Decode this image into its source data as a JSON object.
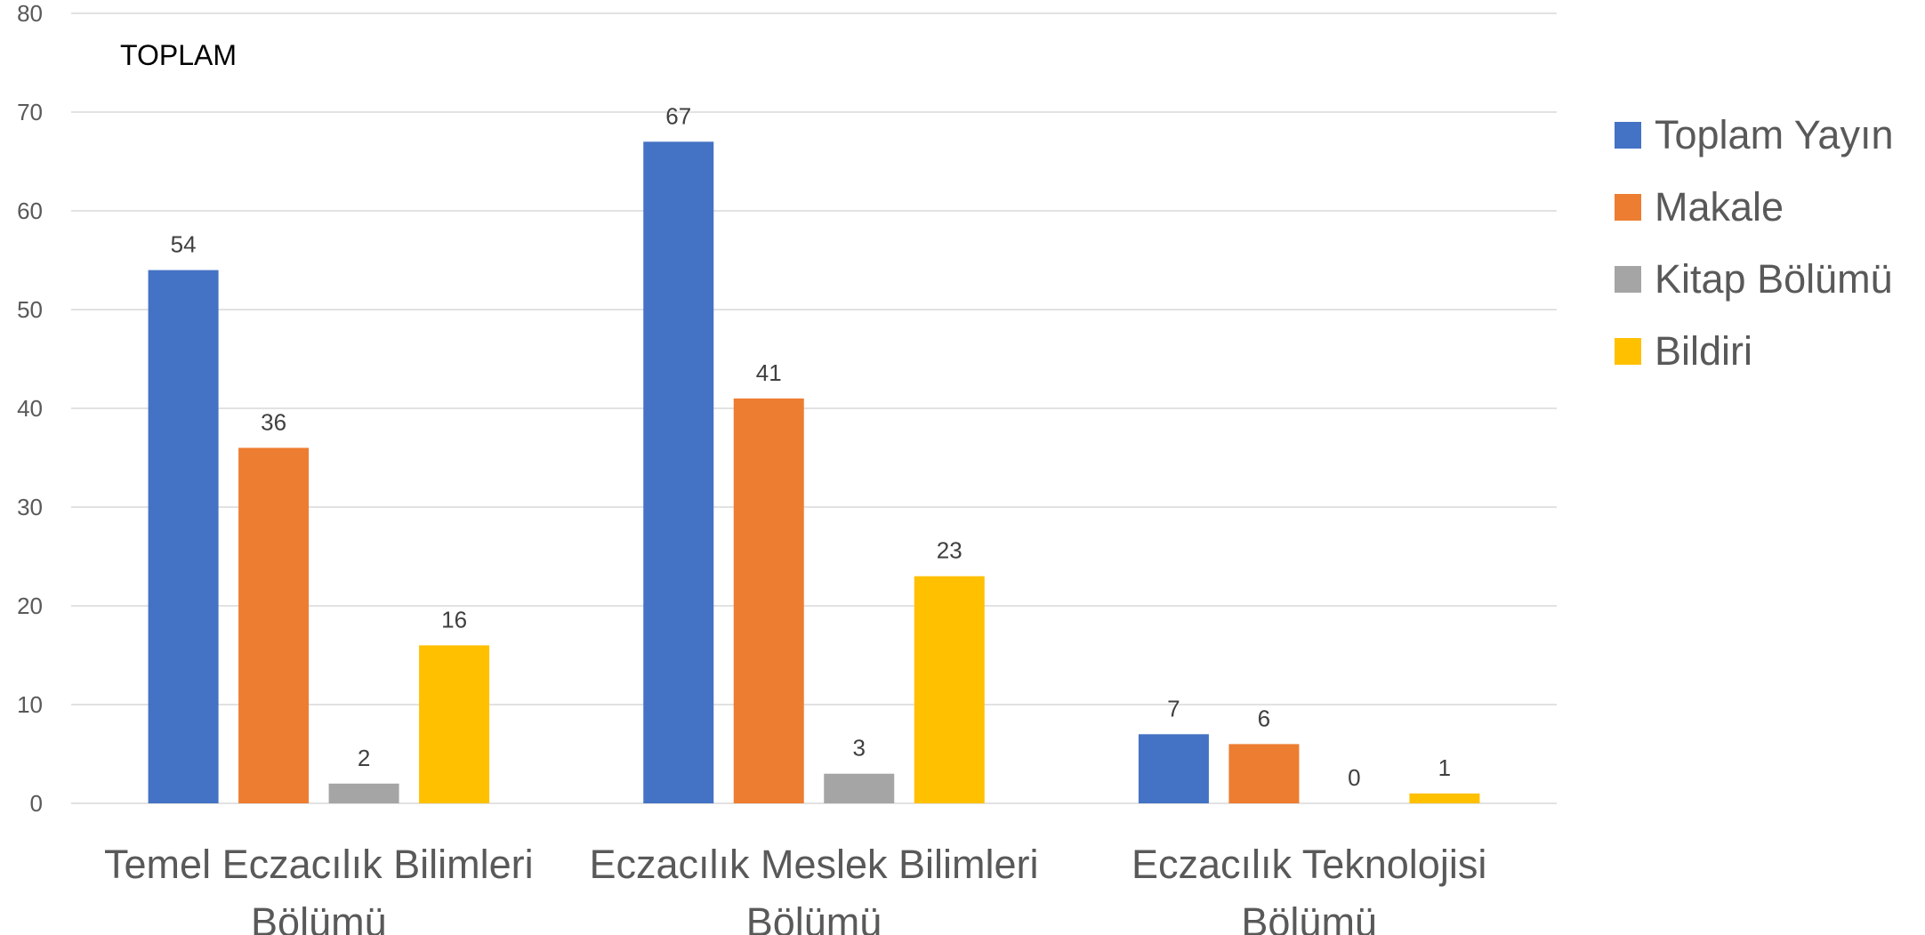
{
  "chart_data": {
    "type": "bar",
    "title": "TOPLAM",
    "categories": [
      [
        "Temel Eczacılık Bilimleri",
        "Bölümü"
      ],
      [
        "Eczacılık Meslek Bilimleri",
        "Bölümü"
      ],
      [
        "Eczacılık Teknolojisi",
        "Bölümü"
      ]
    ],
    "series": [
      {
        "name": "Toplam Yayın",
        "color": "#4472C4",
        "values": [
          54,
          67,
          7
        ]
      },
      {
        "name": "Makale",
        "color": "#ED7D31",
        "values": [
          36,
          41,
          6
        ]
      },
      {
        "name": "Kitap Bölümü",
        "color": "#A5A5A5",
        "values": [
          2,
          3,
          0
        ]
      },
      {
        "name": "Bildiri",
        "color": "#FFC000",
        "values": [
          16,
          23,
          1
        ]
      }
    ],
    "ylim": [
      0,
      80
    ],
    "ytick_step": 10,
    "grid": true,
    "legend_position": "right",
    "data_labels": true
  }
}
